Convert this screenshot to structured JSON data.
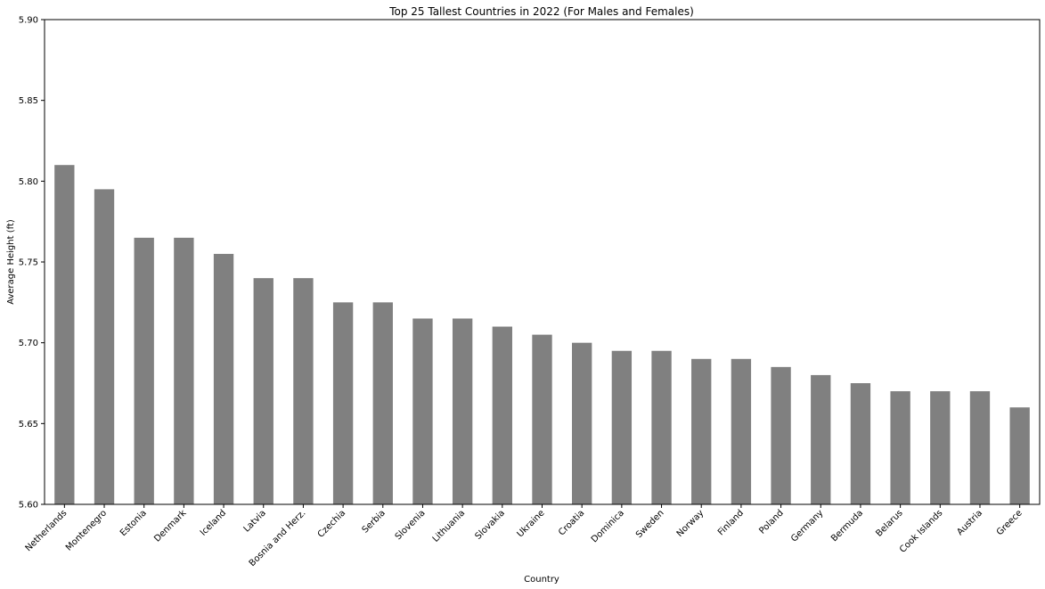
{
  "chart_data": {
    "type": "bar",
    "title": "Top 25 Tallest Countries in 2022 (For Males and Females)",
    "xlabel": "Country",
    "ylabel": "Average Height (ft)",
    "ylim": [
      5.6,
      5.9
    ],
    "yticks": [
      "5.60",
      "5.65",
      "5.70",
      "5.75",
      "5.80",
      "5.85",
      "5.90"
    ],
    "bar_color": "#808080",
    "grid": false,
    "categories": [
      "Netherlands",
      "Montenegro",
      "Estonia",
      "Denmark",
      "Iceland",
      "Latvia",
      "Bosnia and Herz.",
      "Czechia",
      "Serbia",
      "Slovenia",
      "Lithuania",
      "Slovakia",
      "Ukraine",
      "Croatia",
      "Dominica",
      "Sweden",
      "Norway",
      "Finland",
      "Poland",
      "Germany",
      "Bermuda",
      "Belarus",
      "Cook Islands",
      "Austria",
      "Greece"
    ],
    "values": [
      5.81,
      5.795,
      5.765,
      5.765,
      5.755,
      5.74,
      5.74,
      5.725,
      5.725,
      5.715,
      5.715,
      5.71,
      5.705,
      5.7,
      5.695,
      5.695,
      5.69,
      5.69,
      5.685,
      5.68,
      5.675,
      5.67,
      5.67,
      5.67,
      5.66
    ]
  }
}
